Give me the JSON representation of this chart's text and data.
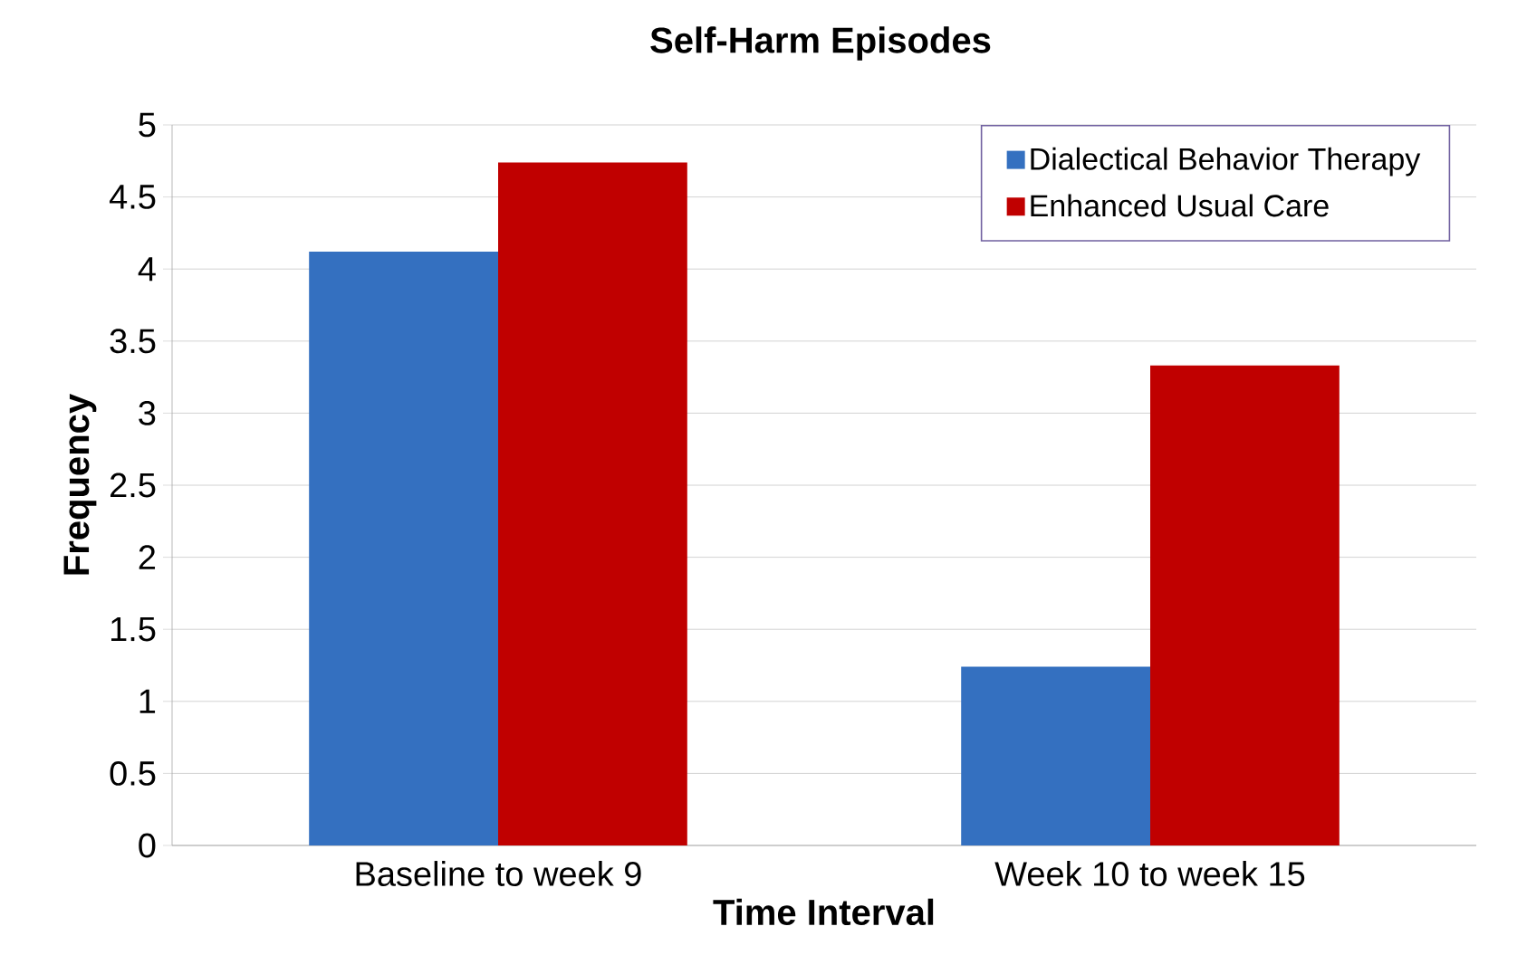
{
  "chart_data": {
    "type": "bar",
    "title": "Self-Harm Episodes",
    "xlabel": "Time Interval",
    "ylabel": "Frequency",
    "categories": [
      "Baseline to week 9",
      "Week 10 to week 15"
    ],
    "series": [
      {
        "name": "Dialectical Behavior Therapy",
        "color": "#3470c0",
        "values": [
          4.12,
          1.24
        ]
      },
      {
        "name": "Enhanced Usual Care",
        "color": "#c00000",
        "values": [
          4.74,
          3.33
        ]
      }
    ],
    "ylim": [
      0,
      5
    ],
    "yticks": [
      0,
      0.5,
      1,
      1.5,
      2,
      2.5,
      3,
      3.5,
      4,
      4.5,
      5
    ],
    "grid": "y",
    "legend": "top right"
  }
}
